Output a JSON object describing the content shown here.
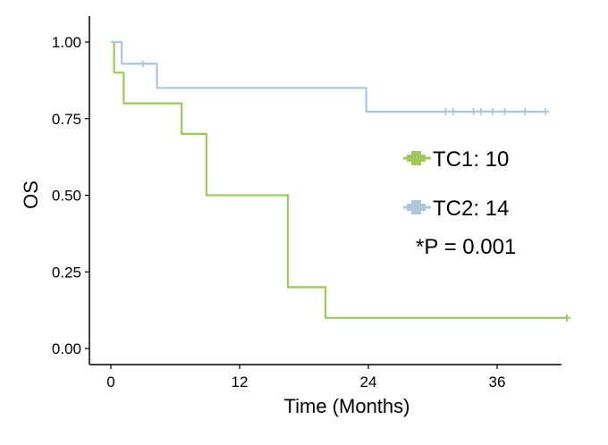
{
  "chart_data": {
    "type": "line",
    "subtype": "kaplan-meier-step",
    "xlabel": "Time (Months)",
    "ylabel": "OS",
    "xlim": [
      -1,
      43
    ],
    "ylim": [
      0,
      1
    ],
    "xticks": [
      0,
      12,
      24,
      36
    ],
    "xtick_labels": [
      "0",
      "12",
      "24",
      "36"
    ],
    "yticks": [
      0,
      0.25,
      0.5,
      0.75,
      1.0
    ],
    "ytick_labels": [
      "0.00",
      "0.25",
      "0.50",
      "0.75",
      "1.00"
    ],
    "grid": false,
    "series": [
      {
        "name": "TC1: 10",
        "color": "#9bc95a",
        "steps": [
          [
            0,
            1.0
          ],
          [
            0.3,
            0.9
          ],
          [
            1.2,
            0.8
          ],
          [
            6.6,
            0.7
          ],
          [
            8.9,
            0.5
          ],
          [
            16.5,
            0.2
          ],
          [
            20.0,
            0.1
          ],
          [
            42.5,
            0.1
          ]
        ],
        "censor": [
          [
            42.5,
            0.1
          ]
        ]
      },
      {
        "name": "TC2: 14",
        "color": "#a9c8dc",
        "steps": [
          [
            0,
            1.0
          ],
          [
            1.0,
            0.929
          ],
          [
            4.3,
            0.85
          ],
          [
            23.8,
            0.773
          ],
          [
            40.5,
            0.773
          ]
        ],
        "censor": [
          [
            3.0,
            0.929
          ],
          [
            31.2,
            0.773
          ],
          [
            31.9,
            0.773
          ],
          [
            33.8,
            0.773
          ],
          [
            34.5,
            0.773
          ],
          [
            35.6,
            0.773
          ],
          [
            36.7,
            0.773
          ],
          [
            38.6,
            0.773
          ],
          [
            40.5,
            0.773
          ]
        ]
      }
    ],
    "legend": {
      "position": "right",
      "entries": [
        "TC1: 10",
        "TC2: 14"
      ]
    },
    "annotation": "*P = 0.001"
  }
}
